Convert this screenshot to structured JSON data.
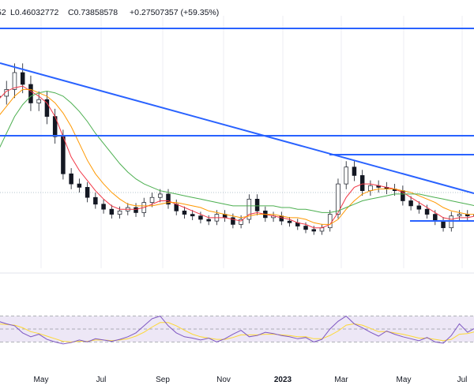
{
  "header": {
    "left_fragment": "52",
    "low": "L0.46032772",
    "close": "C0.73858578",
    "change": "+0.27507357 (+59.35%)"
  },
  "colors": {
    "candles": "#131722",
    "trendlines": "#2962ff",
    "ma_fast": "#2962ff",
    "ma_red": "#f23645",
    "ma_orange": "#ff9800",
    "ma_green": "#4caf50",
    "rsi_line": "#7e57c2",
    "rsi_signal": "#fdd835",
    "rsi_band": "#ede7f6",
    "grid": "#e0e3eb"
  },
  "chart_data": {
    "type": "line",
    "title": "",
    "xlabel": "",
    "ylabel": "",
    "x_tick_labels": [
      "May",
      "Jul",
      "Sep",
      "Nov",
      "2023",
      "Mar",
      "May",
      "Jul"
    ],
    "series": [
      {
        "values": [
          1.42,
          1.46,
          1.56,
          1.49,
          1.38,
          1.4,
          1.3,
          1.18,
          0.96,
          0.9,
          0.88,
          0.82,
          0.78,
          0.75,
          0.72,
          0.74,
          0.76,
          0.73,
          0.79,
          0.82,
          0.84,
          0.78,
          0.74,
          0.72,
          0.71,
          0.69,
          0.68,
          0.72,
          0.7,
          0.66,
          0.69,
          0.81,
          0.74,
          0.7,
          0.71,
          0.68,
          0.67,
          0.65,
          0.63,
          0.62,
          0.64,
          0.72,
          0.9,
          1.0,
          0.95,
          0.86,
          0.89,
          0.88,
          0.87,
          0.86,
          0.8,
          0.77,
          0.75,
          0.72,
          0.68,
          0.64,
          0.71,
          0.72,
          0.71,
          0.72
        ]
      },
      {
        "values": [
          1.4,
          1.45,
          1.47,
          1.48,
          1.45,
          1.42,
          1.38,
          1.3,
          1.18,
          1.06,
          0.98,
          0.92,
          0.86,
          0.81,
          0.77,
          0.75,
          0.75,
          0.75,
          0.76,
          0.78,
          0.8,
          0.8,
          0.78,
          0.76,
          0.74,
          0.72,
          0.7,
          0.7,
          0.7,
          0.69,
          0.68,
          0.72,
          0.73,
          0.72,
          0.71,
          0.7,
          0.69,
          0.67,
          0.66,
          0.64,
          0.64,
          0.66,
          0.73,
          0.82,
          0.88,
          0.9,
          0.9,
          0.89,
          0.88,
          0.87,
          0.85,
          0.82,
          0.79,
          0.76,
          0.73,
          0.7,
          0.69,
          0.7,
          0.7,
          0.71
        ]
      },
      {
        "values": [
          1.3,
          1.36,
          1.42,
          1.46,
          1.46,
          1.44,
          1.42,
          1.38,
          1.32,
          1.24,
          1.14,
          1.04,
          0.96,
          0.9,
          0.85,
          0.81,
          0.78,
          0.77,
          0.77,
          0.77,
          0.78,
          0.79,
          0.79,
          0.78,
          0.77,
          0.76,
          0.74,
          0.73,
          0.72,
          0.71,
          0.7,
          0.71,
          0.72,
          0.72,
          0.72,
          0.71,
          0.7,
          0.7,
          0.69,
          0.67,
          0.66,
          0.66,
          0.69,
          0.75,
          0.8,
          0.84,
          0.86,
          0.87,
          0.87,
          0.87,
          0.86,
          0.85,
          0.83,
          0.81,
          0.79,
          0.76,
          0.74,
          0.73,
          0.72,
          0.72
        ]
      },
      {
        "values": [
          1.1,
          1.2,
          1.3,
          1.37,
          1.42,
          1.44,
          1.45,
          1.44,
          1.42,
          1.38,
          1.33,
          1.27,
          1.2,
          1.14,
          1.08,
          1.02,
          0.97,
          0.93,
          0.9,
          0.88,
          0.86,
          0.85,
          0.84,
          0.83,
          0.82,
          0.81,
          0.8,
          0.79,
          0.78,
          0.77,
          0.77,
          0.77,
          0.77,
          0.77,
          0.77,
          0.76,
          0.76,
          0.75,
          0.75,
          0.74,
          0.73,
          0.73,
          0.74,
          0.76,
          0.78,
          0.8,
          0.81,
          0.82,
          0.83,
          0.84,
          0.84,
          0.84,
          0.84,
          0.83,
          0.82,
          0.81,
          0.8,
          0.79,
          0.78,
          0.77
        ]
      }
    ],
    "rsi": {
      "type": "line",
      "series": [
        {
          "values": [
            62,
            58,
            55,
            44,
            38,
            42,
            34,
            30,
            27,
            29,
            33,
            30,
            35,
            33,
            31,
            34,
            38,
            44,
            55,
            66,
            70,
            55,
            44,
            38,
            36,
            33,
            36,
            30,
            35,
            42,
            48,
            38,
            40,
            45,
            43,
            40,
            38,
            35,
            37,
            30,
            34,
            50,
            62,
            70,
            58,
            52,
            45,
            39,
            47,
            42,
            38,
            35,
            32,
            37,
            30,
            28,
            40,
            58,
            45,
            52
          ]
        },
        {
          "values": [
            58,
            57,
            56,
            52,
            46,
            43,
            39,
            35,
            31,
            30,
            31,
            31,
            33,
            33,
            32,
            33,
            35,
            39,
            45,
            53,
            60,
            60,
            55,
            48,
            42,
            38,
            36,
            34,
            34,
            37,
            41,
            41,
            41,
            42,
            42,
            41,
            40,
            38,
            38,
            35,
            35,
            40,
            47,
            56,
            58,
            56,
            51,
            46,
            46,
            44,
            42,
            39,
            36,
            36,
            34,
            32,
            34,
            42,
            43,
            46
          ]
        }
      ]
    }
  }
}
